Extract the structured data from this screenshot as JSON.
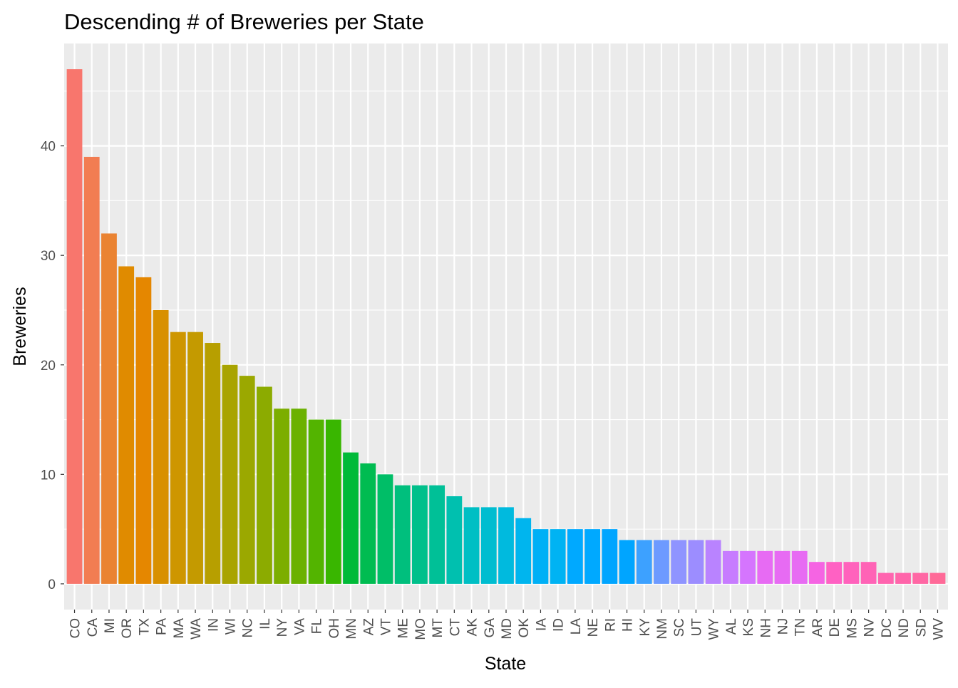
{
  "chart_data": {
    "type": "bar",
    "title": "Descending # of Breweries per State",
    "xlabel": "State",
    "ylabel": "Breweries",
    "ylim": [
      -2.35,
      49.35
    ],
    "yticks": [
      0,
      10,
      20,
      30,
      40
    ],
    "grid": true,
    "legend": "none",
    "panel_background": "#EBEBEB",
    "grid_color": "#FFFFFF",
    "categories": [
      "CO",
      "CA",
      "MI",
      "OR",
      "TX",
      "PA",
      "MA",
      "WA",
      "IN",
      "WI",
      "NC",
      "IL",
      "NY",
      "VA",
      "FL",
      "OH",
      "MN",
      "AZ",
      "VT",
      "ME",
      "MO",
      "MT",
      "CT",
      "AK",
      "GA",
      "MD",
      "OK",
      "IA",
      "ID",
      "LA",
      "NE",
      "RI",
      "HI",
      "KY",
      "NM",
      "SC",
      "UT",
      "WY",
      "AL",
      "KS",
      "NH",
      "NJ",
      "TN",
      "AR",
      "DE",
      "MS",
      "NV",
      "DC",
      "ND",
      "SD",
      "WV"
    ],
    "values": [
      47,
      39,
      32,
      29,
      28,
      25,
      23,
      23,
      22,
      20,
      19,
      18,
      16,
      16,
      15,
      15,
      12,
      11,
      10,
      9,
      9,
      9,
      8,
      7,
      7,
      7,
      6,
      5,
      5,
      5,
      5,
      5,
      4,
      4,
      4,
      4,
      4,
      4,
      3,
      3,
      3,
      3,
      3,
      2,
      2,
      2,
      2,
      1,
      1,
      1,
      1
    ],
    "colors": [
      "#F8766D",
      "#F27D52",
      "#EA8332",
      "#E08B00",
      "#E58700",
      "#D89000",
      "#CE9600",
      "#C49A00",
      "#B79F00",
      "#A9A400",
      "#9BA800",
      "#8CAB00",
      "#7CAE00",
      "#6BB100",
      "#53B400",
      "#39B600",
      "#00BA38",
      "#00BC51",
      "#00BE67",
      "#00BF7D",
      "#00C08B",
      "#00C097",
      "#00C0AF",
      "#00BFC4",
      "#00BDD0",
      "#00BADE",
      "#00B5EE",
      "#00B0F6",
      "#00B3F3",
      "#00A9FF",
      "#00A9FF",
      "#00A5FF",
      "#00A5FF",
      "#3DA1FF",
      "#6D9AFF",
      "#8F94FF",
      "#9C8DFF",
      "#B983FF",
      "#C77CFF",
      "#D575FE",
      "#E76BF3",
      "#E76BF3",
      "#E76BF3",
      "#F564E3",
      "#FF61C3",
      "#FF62BC",
      "#FF63B6",
      "#FF64AF",
      "#FF65AA",
      "#FF67A4",
      "#FF6A98"
    ]
  }
}
